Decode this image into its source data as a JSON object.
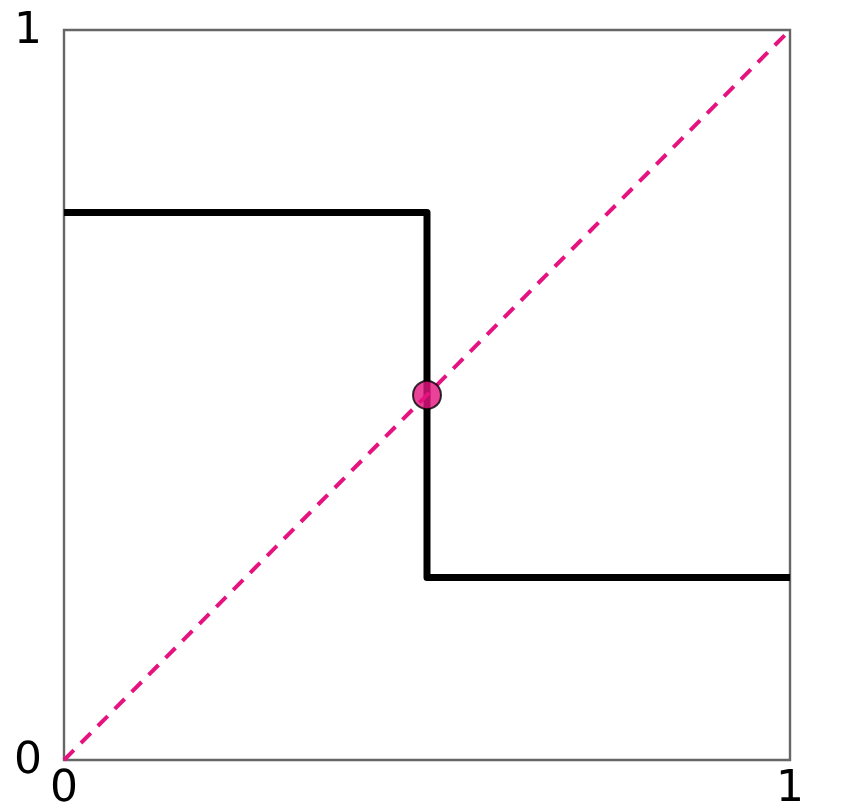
{
  "chart_data": {
    "type": "step",
    "xlim": [
      0,
      1
    ],
    "ylim": [
      0,
      1
    ],
    "xticks": [
      0,
      1
    ],
    "yticks": [
      0,
      1
    ],
    "series": [
      {
        "color": "#000000",
        "x": [
          0,
          0.5,
          0.5,
          1
        ],
        "values": [
          0.75,
          0.75,
          0.25,
          0.25
        ],
        "marker": "none",
        "line_style": "solid"
      },
      {
        "type": "line",
        "color": "#e5127f",
        "x": [
          0,
          1
        ],
        "values": [
          0,
          1
        ],
        "marker": "none",
        "line_style": "dashed"
      },
      {
        "type": "scatter",
        "color": "#e5127f",
        "x": [
          0.5
        ],
        "values": [
          0.5
        ],
        "marker": "circle"
      }
    ]
  }
}
